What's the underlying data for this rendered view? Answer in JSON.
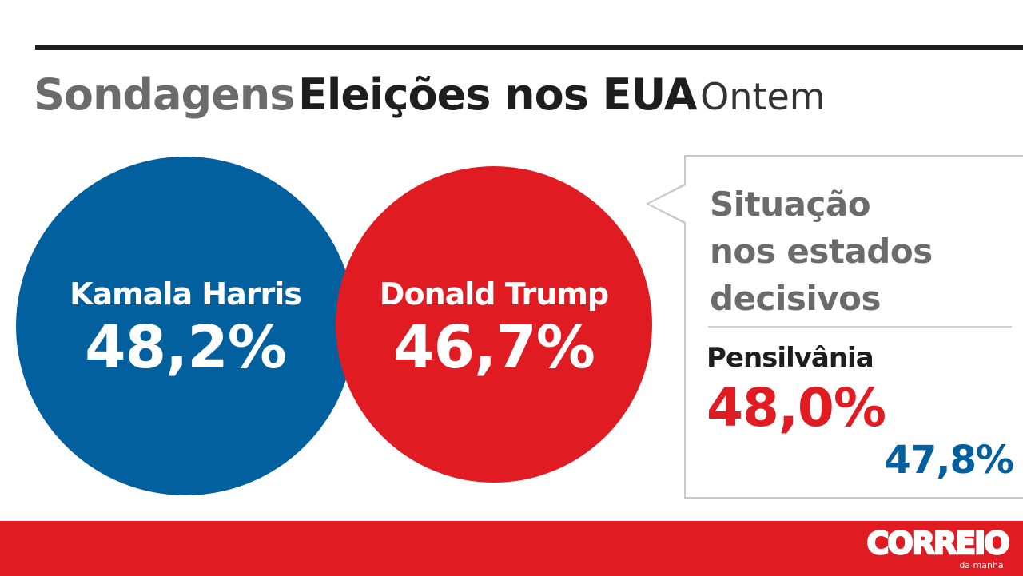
{
  "title": {
    "part1": "Sondagens",
    "part2": "Eleições nos EUA",
    "part3": "Ontem"
  },
  "chart_data": {
    "type": "bubble",
    "title": "Sondagens Eleições nos EUA Ontem",
    "national": [
      {
        "name": "Kamala Harris",
        "value_label": "48,2%",
        "value": 48.2,
        "color": "#03609e"
      },
      {
        "name": "Donald Trump",
        "value_label": "46,7%",
        "value": 46.7,
        "color": "#e11b22"
      }
    ],
    "swing_states_heading": [
      "Situação",
      "nos estados",
      "decisivos"
    ],
    "states": [
      {
        "name": "Pensilvânia",
        "trump_label": "48,0%",
        "trump": 48.0,
        "harris_label": "47,8%",
        "harris": 47.8
      }
    ]
  },
  "footer": {
    "brand": "CORREIO",
    "brand_sub": "da manhã",
    "bar_color": "#e11b22"
  }
}
